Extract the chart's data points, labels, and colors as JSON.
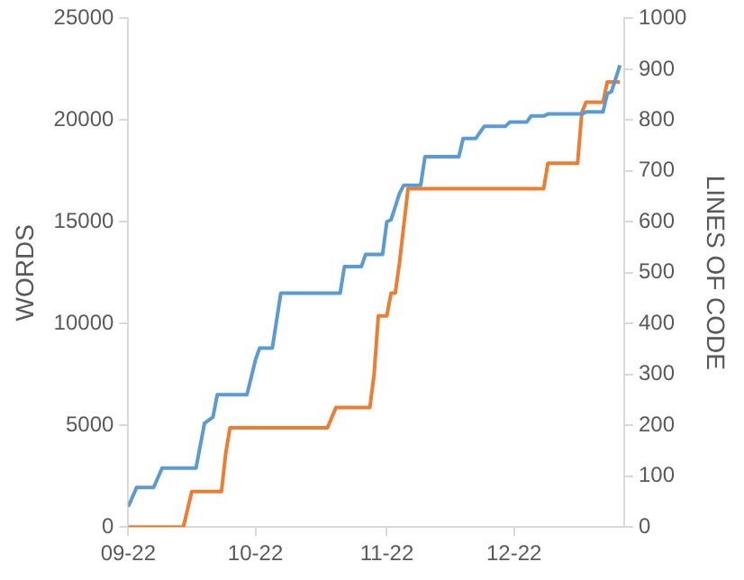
{
  "chart_data": {
    "type": "line",
    "xlabel": null,
    "ylabel": "WORDS",
    "y2label": "LINES OF CODE",
    "xlim": [
      "2022-09-01",
      "2022-12-27"
    ],
    "xticks": [
      {
        "value": "2022-09-01",
        "label": "09-22"
      },
      {
        "value": "2022-10-01",
        "label": "10-22"
      },
      {
        "value": "2022-11-01",
        "label": "11-22"
      },
      {
        "value": "2022-12-01",
        "label": "12-22"
      }
    ],
    "ylim": [
      0,
      25000
    ],
    "yticks": [
      0,
      5000,
      10000,
      15000,
      20000,
      25000
    ],
    "y2lim": [
      0,
      1000
    ],
    "y2ticks": [
      0,
      100,
      200,
      300,
      400,
      500,
      600,
      700,
      800,
      900,
      1000
    ],
    "grid": false,
    "legend": false,
    "marker": "none",
    "line_style": "solid",
    "series": [
      {
        "color": "#5b9bd5",
        "x": [
          "2022-09-01",
          "2022-09-03",
          "2022-09-07",
          "2022-09-09",
          "2022-09-17",
          "2022-09-19",
          "2022-09-21",
          "2022-09-22",
          "2022-09-29",
          "2022-10-01",
          "2022-10-02",
          "2022-10-05",
          "2022-10-07",
          "2022-10-21",
          "2022-10-22",
          "2022-10-26",
          "2022-10-27",
          "2022-10-31",
          "2022-11-01",
          "2022-11-02",
          "2022-11-04",
          "2022-11-05",
          "2022-11-09",
          "2022-11-10",
          "2022-11-18",
          "2022-11-19",
          "2022-11-22",
          "2022-11-24",
          "2022-11-29",
          "2022-11-30",
          "2022-12-04",
          "2022-12-05",
          "2022-12-08",
          "2022-12-09",
          "2022-12-17",
          "2022-12-18",
          "2022-12-22",
          "2022-12-23",
          "2022-12-24",
          "2022-12-26"
        ],
        "values": [
          1000,
          1950,
          1950,
          2900,
          2900,
          5100,
          5400,
          6500,
          6500,
          8200,
          8800,
          8800,
          11500,
          11500,
          12800,
          12800,
          13400,
          13400,
          15000,
          15100,
          16400,
          16800,
          16800,
          18200,
          18200,
          19100,
          19100,
          19700,
          19700,
          19900,
          19900,
          20200,
          20200,
          20300,
          20300,
          20400,
          20400,
          21300,
          21400,
          22700
        ]
      },
      {
        "color": "#ed7d31",
        "axis": "y2",
        "x": [
          "2022-09-01",
          "2022-09-14",
          "2022-09-16",
          "2022-09-23",
          "2022-09-24",
          "2022-09-25",
          "2022-10-18",
          "2022-10-20",
          "2022-10-28",
          "2022-10-29",
          "2022-10-30",
          "2022-11-01",
          "2022-11-02",
          "2022-11-03",
          "2022-11-04",
          "2022-11-06",
          "2022-12-08",
          "2022-12-09",
          "2022-12-16",
          "2022-12-17",
          "2022-12-18",
          "2022-12-22",
          "2022-12-23",
          "2022-12-26"
        ],
        "values": [
          0,
          0,
          70,
          70,
          145,
          195,
          195,
          235,
          235,
          300,
          415,
          415,
          460,
          460,
          520,
          665,
          665,
          715,
          715,
          815,
          835,
          835,
          875,
          875
        ]
      }
    ]
  }
}
